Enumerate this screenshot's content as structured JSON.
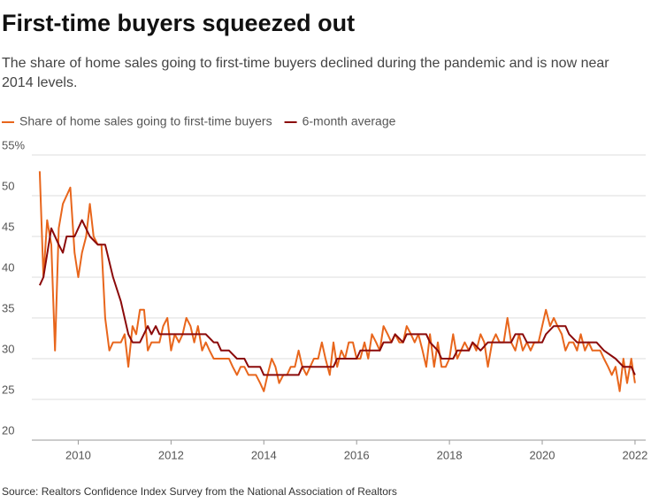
{
  "chart_data": {
    "type": "line",
    "title": "First-time buyers squeezed out",
    "subtitle_lines": [
      "The share of home sales going to first-time buyers declined during the pandemic and is now near",
      "2014 levels."
    ],
    "source": "Source: Realtors Confidence Index Survey from the National Association of Realtors",
    "xlim": [
      2009,
      2022.23
    ],
    "ylim": [
      20,
      55
    ],
    "xticks": [
      2010,
      2012,
      2014,
      2016,
      2018,
      2020,
      2022
    ],
    "yticks": [
      20,
      25,
      30,
      35,
      40,
      45,
      50,
      {
        "value": 55,
        "label": "55%"
      }
    ],
    "grid": true,
    "series": [
      {
        "name": "Share of home sales going to first-time buyers",
        "color": "#e8661c",
        "x": [
          2009.17,
          2009.25,
          2009.33,
          2009.42,
          2009.5,
          2009.58,
          2009.67,
          2009.75,
          2009.83,
          2009.92,
          2010.0,
          2010.08,
          2010.17,
          2010.25,
          2010.33,
          2010.42,
          2010.5,
          2010.58,
          2010.67,
          2010.75,
          2010.83,
          2010.92,
          2011.0,
          2011.08,
          2011.17,
          2011.25,
          2011.33,
          2011.42,
          2011.5,
          2011.58,
          2011.67,
          2011.75,
          2011.83,
          2011.92,
          2012.0,
          2012.08,
          2012.17,
          2012.25,
          2012.33,
          2012.42,
          2012.5,
          2012.58,
          2012.67,
          2012.75,
          2012.83,
          2012.92,
          2013.0,
          2013.08,
          2013.17,
          2013.25,
          2013.33,
          2013.42,
          2013.5,
          2013.58,
          2013.67,
          2013.75,
          2013.83,
          2013.92,
          2014.0,
          2014.08,
          2014.17,
          2014.25,
          2014.33,
          2014.42,
          2014.5,
          2014.58,
          2014.67,
          2014.75,
          2014.83,
          2014.92,
          2015.0,
          2015.08,
          2015.17,
          2015.25,
          2015.33,
          2015.42,
          2015.5,
          2015.58,
          2015.67,
          2015.75,
          2015.83,
          2015.92,
          2016.0,
          2016.08,
          2016.17,
          2016.25,
          2016.33,
          2016.42,
          2016.5,
          2016.58,
          2016.67,
          2016.75,
          2016.83,
          2016.92,
          2017.0,
          2017.08,
          2017.17,
          2017.25,
          2017.33,
          2017.42,
          2017.5,
          2017.58,
          2017.67,
          2017.75,
          2017.83,
          2017.92,
          2018.0,
          2018.08,
          2018.17,
          2018.25,
          2018.33,
          2018.42,
          2018.5,
          2018.58,
          2018.67,
          2018.75,
          2018.83,
          2018.92,
          2019.0,
          2019.08,
          2019.17,
          2019.25,
          2019.33,
          2019.42,
          2019.5,
          2019.58,
          2019.67,
          2019.75,
          2019.83,
          2019.92,
          2020.0,
          2020.08,
          2020.17,
          2020.25,
          2020.33,
          2020.42,
          2020.5,
          2020.58,
          2020.67,
          2020.75,
          2020.83,
          2020.92,
          2021.0,
          2021.08,
          2021.17,
          2021.25,
          2021.33,
          2021.42,
          2021.5,
          2021.58,
          2021.67,
          2021.75,
          2021.83,
          2021.92,
          2022.0
        ],
        "values": [
          53,
          40,
          47,
          44,
          31,
          46,
          49,
          50,
          51,
          43,
          40,
          43,
          45,
          49,
          45,
          44,
          44,
          35,
          31,
          32,
          32,
          32,
          33,
          29,
          34,
          33,
          36,
          36,
          31,
          32,
          32,
          32,
          34,
          35,
          31,
          33,
          32,
          33,
          35,
          34,
          32,
          34,
          31,
          32,
          31,
          30,
          30,
          30,
          30,
          30,
          29,
          28,
          29,
          29,
          28,
          28,
          28,
          27,
          26,
          28,
          30,
          29,
          27,
          28,
          28,
          29,
          29,
          31,
          29,
          28,
          29,
          30,
          30,
          32,
          30,
          28,
          32,
          29,
          31,
          30,
          32,
          32,
          30,
          30,
          32,
          30,
          33,
          32,
          31,
          34,
          33,
          32,
          33,
          32,
          32,
          34,
          33,
          32,
          33,
          31,
          29,
          33,
          29,
          32,
          29,
          29,
          30,
          33,
          30,
          31,
          32,
          31,
          32,
          31,
          33,
          32,
          29,
          32,
          33,
          32,
          32,
          35,
          32,
          31,
          33,
          31,
          32,
          31,
          32,
          32,
          34,
          36,
          34,
          35,
          34,
          33,
          31,
          32,
          32,
          31,
          33,
          31,
          32,
          31,
          31,
          31,
          30,
          29,
          28,
          29,
          26,
          30,
          27,
          30,
          27
        ]
      },
      {
        "name": "6-month average",
        "color": "#8b0a0a",
        "x": [
          2009.17,
          2009.25,
          2009.42,
          2009.58,
          2009.67,
          2009.75,
          2009.92,
          2010.08,
          2010.25,
          2010.42,
          2010.58,
          2010.75,
          2010.92,
          2011.08,
          2011.17,
          2011.33,
          2011.5,
          2011.58,
          2011.67,
          2011.75,
          2012.0,
          2012.25,
          2012.5,
          2012.75,
          2012.92,
          2013.0,
          2013.08,
          2013.25,
          2013.42,
          2013.58,
          2013.67,
          2013.92,
          2014.0,
          2014.5,
          2014.75,
          2014.83,
          2015.0,
          2015.5,
          2015.58,
          2016.0,
          2016.08,
          2016.5,
          2016.58,
          2016.75,
          2016.83,
          2017.0,
          2017.08,
          2017.5,
          2017.58,
          2017.75,
          2017.83,
          2018.0,
          2018.08,
          2018.17,
          2018.42,
          2018.5,
          2018.67,
          2018.83,
          2019.0,
          2019.33,
          2019.42,
          2019.58,
          2019.67,
          2020.0,
          2020.08,
          2020.25,
          2020.5,
          2020.58,
          2020.75,
          2021.17,
          2021.33,
          2021.58,
          2021.75,
          2021.92,
          2022.0
        ],
        "values": [
          39,
          40,
          46,
          44,
          43,
          45,
          45,
          47,
          45,
          44,
          44,
          40,
          37,
          33,
          32,
          32,
          34,
          33,
          34,
          33,
          33,
          33,
          33,
          33,
          32,
          32,
          31,
          31,
          30,
          30,
          29,
          29,
          28,
          28,
          28,
          29,
          29,
          29,
          30,
          30,
          31,
          31,
          32,
          32,
          33,
          32,
          33,
          33,
          32,
          31,
          30,
          30,
          30,
          31,
          31,
          32,
          31,
          32,
          32,
          32,
          33,
          33,
          32,
          32,
          33,
          34,
          34,
          33,
          32,
          32,
          31,
          30,
          29,
          29,
          28
        ]
      }
    ]
  }
}
